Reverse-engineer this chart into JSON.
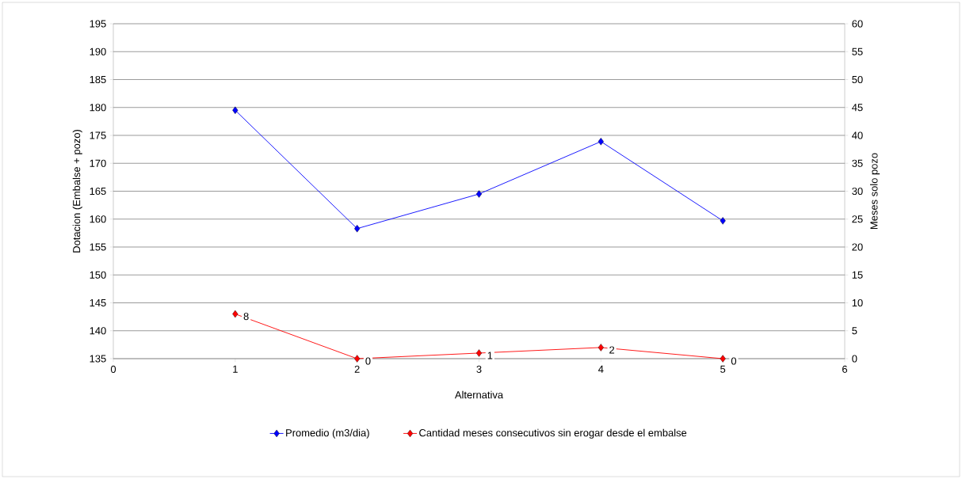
{
  "chart_data": {
    "type": "line",
    "xlabel": "Alternativa",
    "ylabel": "Dotacion (Embalse + pozo)",
    "y2label": "Meses solo pozo",
    "x": [
      1,
      2,
      3,
      4,
      5
    ],
    "series": [
      {
        "name": "Promedio (m3/dia)",
        "color": "#0000ff",
        "values": [
          179.5,
          158.3,
          164.5,
          173.9,
          159.7
        ]
      },
      {
        "name": "Cantidad meses consecutivos sin erogar desde el embalse",
        "color": "#ff0000",
        "axis": "y2",
        "values": [
          8,
          0,
          1,
          2,
          0
        ],
        "value_labels": [
          "8",
          "0",
          "1",
          "2",
          "0"
        ]
      }
    ],
    "xlim": [
      0,
      6
    ],
    "xticks": [
      0,
      1,
      2,
      3,
      4,
      5,
      6
    ],
    "ylim": [
      135,
      195
    ],
    "yticks": [
      135,
      140,
      145,
      150,
      155,
      160,
      165,
      170,
      175,
      180,
      185,
      190,
      195
    ],
    "y2lim": [
      0,
      60
    ],
    "y2ticks": [
      0,
      5,
      10,
      15,
      20,
      25,
      30,
      35,
      40,
      45,
      50,
      55,
      60
    ],
    "grid": "y",
    "legend": "bottom",
    "marker": "diamond",
    "line_style": "solid"
  }
}
